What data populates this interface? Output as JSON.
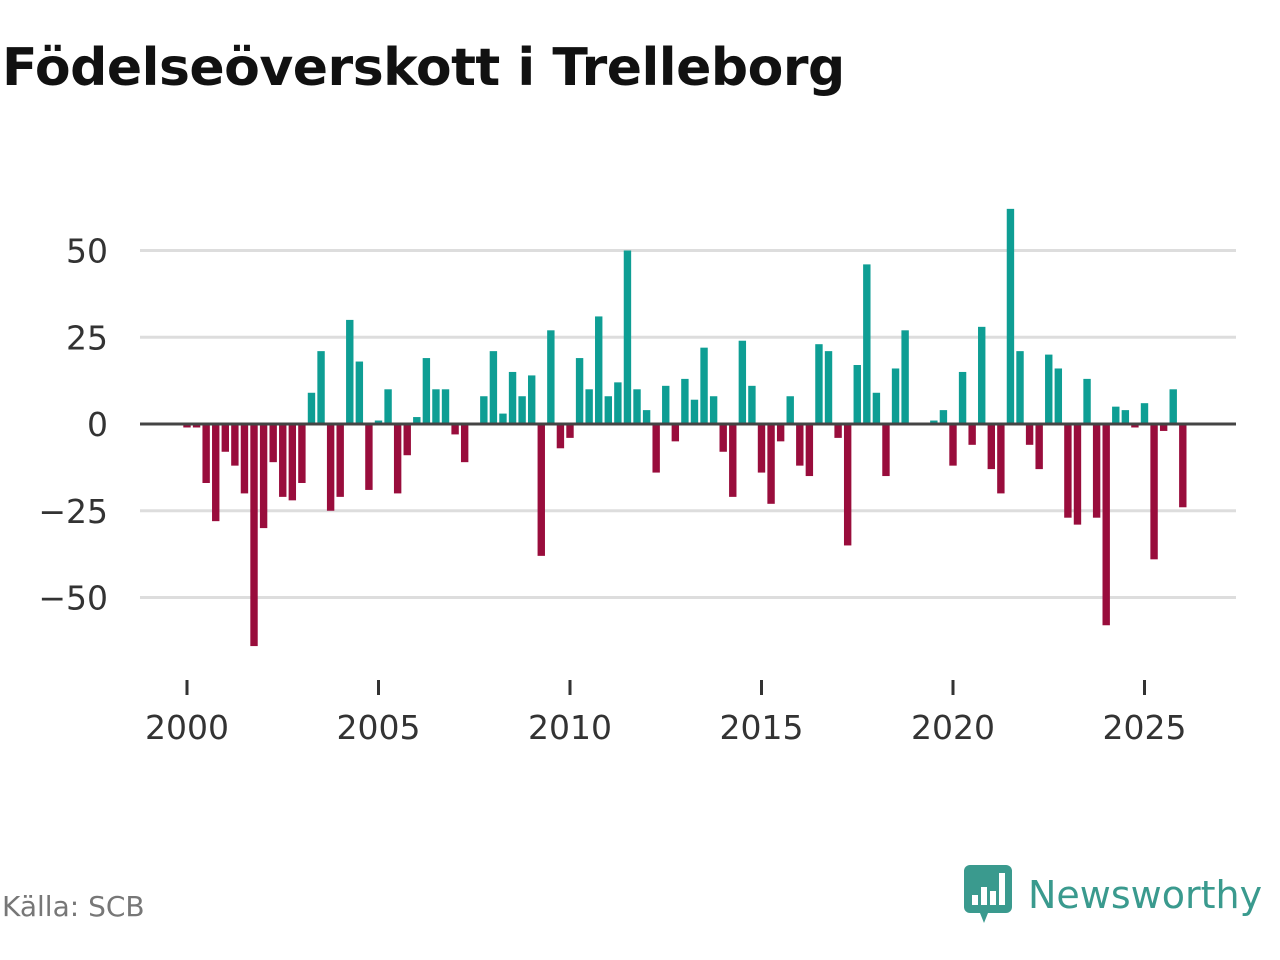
{
  "title": "Födelseöverskott i Trelleborg",
  "source": "Källa: SCB",
  "brand": "Newsworthy",
  "colors": {
    "positive": "#0e9e94",
    "negative": "#990d3c",
    "grid": "#dddddd",
    "zero": "#444444",
    "brand": "#3a9a8e"
  },
  "chart_data": {
    "type": "bar",
    "title": "Födelseöverskott i Trelleborg",
    "xlabel": "",
    "ylabel": "",
    "xlim": [
      1998.6,
      2027.2
    ],
    "ylim": [
      -70,
      70
    ],
    "yticks": [
      -50,
      -25,
      0,
      25,
      50
    ],
    "ytick_labels": [
      "−50",
      "−25",
      "0",
      "25",
      "50"
    ],
    "xticks": [
      2000,
      2005,
      2010,
      2015,
      2020,
      2025
    ],
    "xtick_labels": [
      "2000",
      "2005",
      "2010",
      "2015",
      "2020",
      "2025"
    ],
    "grid": true,
    "bar_period": "quarter",
    "start": 2000.0,
    "values": [
      -1,
      -1,
      -17,
      -28,
      -8,
      -12,
      -20,
      -64,
      -30,
      -11,
      -21,
      -22,
      -17,
      9,
      21,
      -25,
      -21,
      30,
      18,
      -19,
      1,
      10,
      -20,
      -9,
      2,
      19,
      10,
      10,
      -3,
      -11,
      0,
      8,
      21,
      3,
      15,
      8,
      14,
      -38,
      27,
      -7,
      -4,
      19,
      10,
      31,
      8,
      12,
      50,
      10,
      4,
      -14,
      11,
      -5,
      13,
      7,
      22,
      8,
      -8,
      -21,
      24,
      11,
      -14,
      -23,
      -5,
      8,
      -12,
      -15,
      23,
      21,
      -4,
      -35,
      17,
      46,
      9,
      -15,
      16,
      27,
      0,
      0,
      1,
      4,
      -12,
      15,
      -6,
      28,
      -13,
      -20,
      62,
      21,
      -6,
      -13,
      20,
      16,
      -27,
      -29,
      13,
      -27,
      -58,
      5,
      4,
      -1,
      6,
      -39,
      -2,
      10,
      -24
    ]
  }
}
